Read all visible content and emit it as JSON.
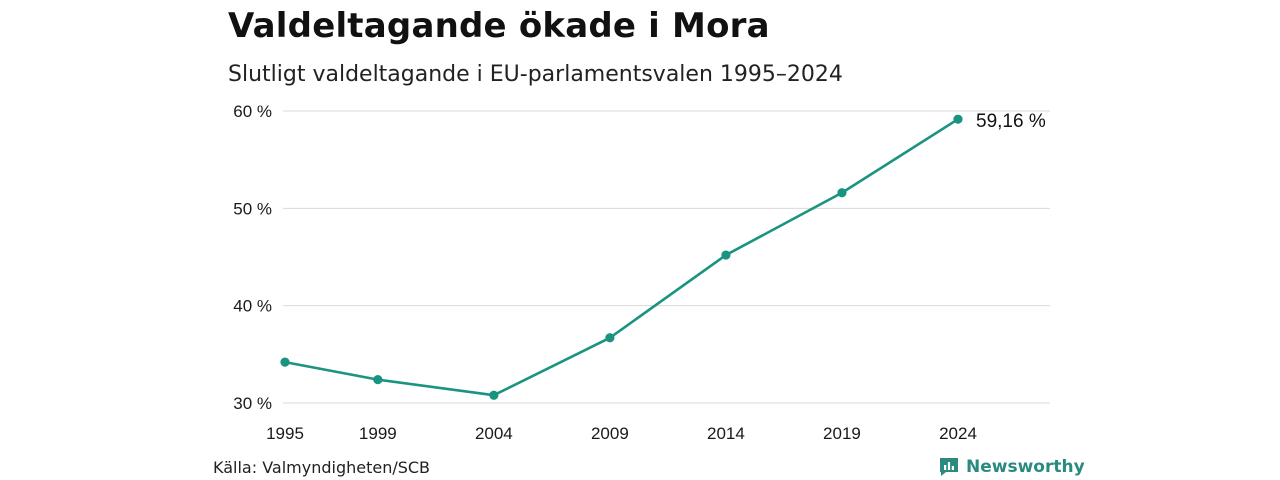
{
  "header": {
    "title": "Valdeltagande ökade i Mora",
    "subtitle": "Slutligt valdeltagande i EU-parlamentsvalen 1995–2024"
  },
  "footer": {
    "source": "Källa: Valmyndigheten/SCB",
    "brand": "Newsworthy",
    "brand_icon": "bar-chart-speech-bubble-icon"
  },
  "colors": {
    "line": "#1a9480",
    "grid": "#d9d9d9",
    "brand": "#2a8a80"
  },
  "chart_data": {
    "type": "line",
    "title": "Valdeltagande ökade i Mora",
    "subtitle": "Slutligt valdeltagande i EU-parlamentsvalen 1995–2024",
    "x": [
      1995,
      1999,
      2004,
      2009,
      2014,
      2019,
      2024
    ],
    "xticks": [
      "1995",
      "1999",
      "2004",
      "2009",
      "2014",
      "2019",
      "2024"
    ],
    "series": [
      {
        "values": [
          34.2,
          32.4,
          30.8,
          36.7,
          45.2,
          51.6,
          59.16
        ]
      }
    ],
    "yticks": [
      30,
      40,
      50,
      60
    ],
    "ytick_labels": [
      "30 %",
      "40 %",
      "50 %",
      "60 %"
    ],
    "ylim": [
      30,
      60
    ],
    "xlim": [
      1995,
      2024
    ],
    "grid": true,
    "end_label": "59,16 %",
    "xlabel": "",
    "ylabel": ""
  }
}
